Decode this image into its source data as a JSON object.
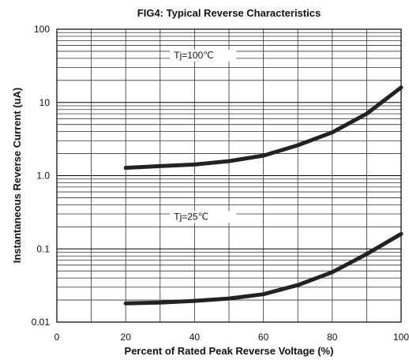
{
  "chart_data": {
    "type": "line",
    "title": "FIG4:  Typical Reverse Characteristics",
    "xlabel": "Percent of Rated Peak Reverse Voltage (%)",
    "ylabel": "Instantaneous Reverse Current (uA)",
    "xlim": [
      0,
      100
    ],
    "ylim": [
      0.01,
      100
    ],
    "yscale": "log",
    "grid": true,
    "x_ticks": [
      "0",
      "20",
      "40",
      "60",
      "80",
      "100"
    ],
    "y_ticks": [
      "0.01",
      "0.1",
      "1.0",
      "10",
      "100"
    ],
    "x_tick_values": [
      0,
      20,
      40,
      60,
      80,
      100
    ],
    "y_tick_values": [
      0.01,
      0.1,
      1,
      10,
      100
    ],
    "series": [
      {
        "name": "Tj=100℃",
        "color": "#222222",
        "x": [
          20,
          30,
          40,
          50,
          60,
          70,
          80,
          90,
          100
        ],
        "y": [
          1.28,
          1.35,
          1.42,
          1.58,
          1.88,
          2.6,
          3.9,
          7.0,
          16.0
        ]
      },
      {
        "name": "Tj=25℃",
        "color": "#222222",
        "x": [
          20,
          30,
          40,
          50,
          60,
          70,
          80,
          90,
          100
        ],
        "y": [
          0.018,
          0.0185,
          0.0195,
          0.021,
          0.024,
          0.032,
          0.048,
          0.085,
          0.16
        ]
      }
    ]
  }
}
